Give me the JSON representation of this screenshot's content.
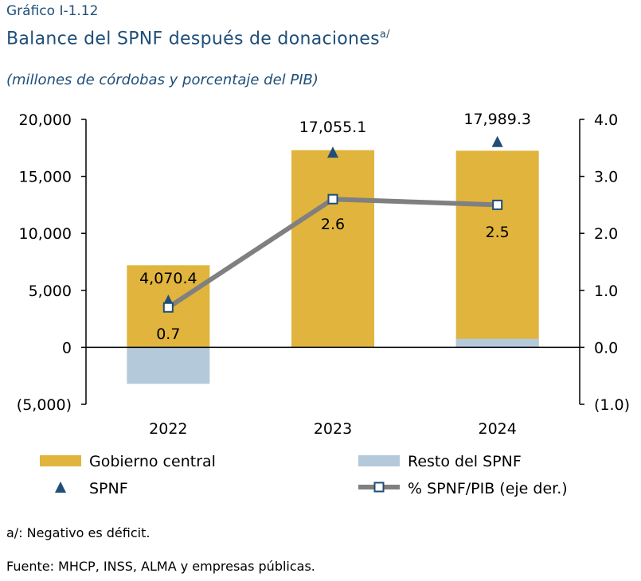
{
  "header": {
    "figure_label": "Gráfico I-1.12",
    "title": "Balance del SPNF después de donaciones",
    "title_sup": "a/",
    "subtitle": "(millones de córdobas y porcentaje del PIB)"
  },
  "colors": {
    "gobierno_central": "#e0b43d",
    "resto_spnf": "#b4c9d9",
    "spnf_marker": "#1f4e79",
    "line": "#808080",
    "axis": "#000000"
  },
  "chart_data": {
    "type": "bar",
    "categories": [
      "2022",
      "2023",
      "2024"
    ],
    "series": [
      {
        "name": "Gobierno central",
        "type": "bar",
        "values": [
          7200,
          17300,
          17250
        ]
      },
      {
        "name": "Resto del SPNF",
        "type": "bar",
        "values": [
          -3200,
          0,
          750
        ]
      },
      {
        "name": "SPNF",
        "type": "marker",
        "values": [
          4070.4,
          17055.1,
          17989.3
        ]
      },
      {
        "name": "% SPNF/PIB (eje der.)",
        "type": "line",
        "axis": "right",
        "values": [
          0.7,
          2.6,
          2.5
        ]
      }
    ],
    "data_labels": {
      "spnf": [
        "4,070.4",
        "17,055.1",
        "17,989.3"
      ],
      "pct": [
        "0.7",
        "2.6",
        "2.5"
      ]
    },
    "ylim": [
      -5000,
      20000
    ],
    "y2lim": [
      -1.0,
      4.0
    ],
    "yticks": [
      "20,000",
      "15,000",
      "10,000",
      "5,000",
      "0",
      "(5,000)"
    ],
    "y2ticks": [
      "4.0",
      "3.0",
      "2.0",
      "1.0",
      "0.0",
      "(1.0)"
    ],
    "legend": [
      "Gobierno central",
      "Resto del SPNF",
      "SPNF",
      "% SPNF/PIB (eje der.)"
    ],
    "legend_position": "bottom"
  },
  "footer": {
    "note": "a/: Negativo es déficit.",
    "source": "Fuente: MHCP, INSS, ALMA y empresas públicas."
  }
}
